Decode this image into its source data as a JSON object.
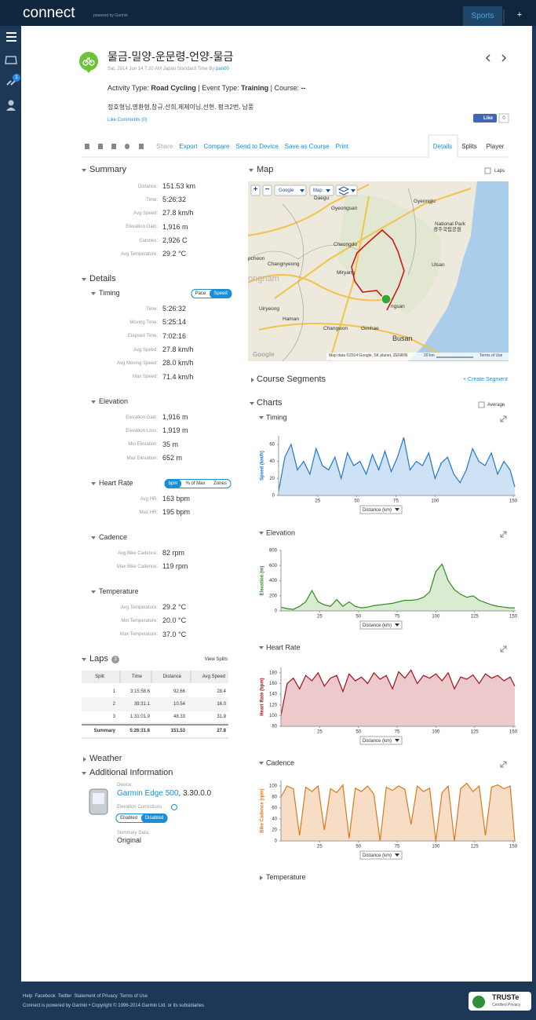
{
  "top_bar": {
    "logo": "connect",
    "powered": "powered by Garmin",
    "tab": "Sports",
    "plus": "+"
  },
  "sidebar": {
    "badge": "1"
  },
  "header": {
    "title": "물금-밀양-운문령-언양-물금",
    "subtitle": "Sat, 2014 Jun 14 7:20 AM Japan Standard Time By ",
    "author": "pan00",
    "activity_label": "Activity Type: ",
    "activity": "Road Cycling",
    "event_label": " | Event Type: ",
    "event": "Training",
    "course_label": " | Course: ",
    "course": "--",
    "description": "정호형님,명환형,창규,선희,제제이님,선현. 펑크2번. 남풍",
    "like_comments": "Like Comments (0)",
    "like": "Like",
    "like_count": "0"
  },
  "toolbar": {
    "actions": [
      "Share",
      "Export",
      "Compare",
      "Send to Device",
      "Save as Course",
      "Print"
    ],
    "tabs": [
      "Details",
      "Splits",
      "Player"
    ]
  },
  "summary": {
    "title": "Summary",
    "rows": [
      {
        "label": "Distance:",
        "value": "151.53 km"
      },
      {
        "label": "Time:",
        "value": "5:26:32"
      },
      {
        "label": "Avg Speed:",
        "value": "27.8 km/h"
      },
      {
        "label": "Elevation Gain:",
        "value": "1,916 m"
      },
      {
        "label": "Calories:",
        "value": "2,926 C"
      },
      {
        "label": "Avg Temperature:",
        "value": "29.2 °C"
      }
    ]
  },
  "details": {
    "title": "Details",
    "groups": [
      {
        "title": "Timing",
        "toggle": [
          "Pace",
          "Speed"
        ],
        "rows": [
          {
            "label": "Time:",
            "value": "5:26:32"
          },
          {
            "label": "Moving Time:",
            "value": "5:25:14"
          },
          {
            "label": "Elapsed Time:",
            "value": "7:02:16"
          },
          {
            "label": "Avg Speed:",
            "value": "27.8 km/h"
          },
          {
            "label": "Avg Moving Speed:",
            "value": "28.0 km/h"
          },
          {
            "label": "Max Speed:",
            "value": "71.4 km/h"
          }
        ]
      },
      {
        "title": "Elevation",
        "rows": [
          {
            "label": "Elevation Gain:",
            "value": "1,916 m"
          },
          {
            "label": "Elevation Loss:",
            "value": "1,919 m"
          },
          {
            "label": "Min Elevation:",
            "value": "35 m"
          },
          {
            "label": "Max Elevation:",
            "value": "652 m"
          }
        ]
      },
      {
        "title": "Heart Rate",
        "toggle": [
          "bpm",
          "% of Max",
          "Zones"
        ],
        "rows": [
          {
            "label": "Avg HR:",
            "value": "163 bpm"
          },
          {
            "label": "Max HR:",
            "value": "195 bpm"
          }
        ]
      },
      {
        "title": "Cadence",
        "rows": [
          {
            "label": "Avg Bike Cadence:",
            "value": "82 rpm"
          },
          {
            "label": "Max Bike Cadence:",
            "value": "119 rpm"
          }
        ]
      },
      {
        "title": "Temperature",
        "rows": [
          {
            "label": "Avg Temperature:",
            "value": "29.2 °C"
          },
          {
            "label": "Min Temperature:",
            "value": "20.0 °C"
          },
          {
            "label": "Max Temperature:",
            "value": "37.0 °C"
          }
        ]
      }
    ]
  },
  "laps": {
    "title": "Laps",
    "count": "3",
    "view": "View Splits",
    "columns": [
      "Split",
      "Time",
      "Distance",
      "Avg Speed"
    ],
    "rows": [
      [
        "1",
        "3:15:58.6",
        "92.66",
        "28.4"
      ],
      [
        "2",
        "39:31.1",
        "10.54",
        "16.0"
      ],
      [
        "3",
        "1:31:01.9",
        "48.33",
        "31.9"
      ],
      [
        "Summary",
        "5:26:31.6",
        "151.53",
        "27.8"
      ]
    ]
  },
  "weather": "Weather",
  "additional": {
    "title": "Additional Information",
    "device_label": "Device:",
    "device": "Garmin Edge 500",
    "version": ", 3.30.0.0",
    "corrections_label": "Elevation Corrections",
    "toggle": [
      "Enabled",
      "Disabled"
    ],
    "summary_label": "Summary Data:",
    "summary": "Original"
  },
  "map": {
    "title": "Map",
    "laps": "Laps",
    "zoom": [
      "+",
      "−"
    ],
    "buttons": [
      "Google",
      "Map"
    ],
    "labels": [
      "Daegu",
      "Gyeongsan",
      "Gyeongju",
      "National Park",
      "경주국립공원",
      "Cheongdo",
      "pcheon",
      "Changnyeong",
      "Miryang",
      "Ulsan",
      "ongnam",
      "Uiryeong",
      "ngsan",
      "Haman",
      "Changwon",
      "Gimhae",
      "Busan"
    ],
    "google": "Google",
    "attribution": "Map data ©2014 Google, SK planet, ZENRIN",
    "scale": "20 km",
    "terms": "Terms of Use"
  },
  "course_segments": {
    "title": "Course Segments",
    "create": "+ Create Segment"
  },
  "charts_section": {
    "title": "Charts",
    "average": "Average",
    "temperature": "Temperature"
  },
  "chart_data": [
    {
      "type": "area",
      "title": "Timing",
      "y_label": "Speed (km/h)",
      "x_label": "Distance (km)",
      "color": "#1f78d1",
      "fill": "#cfe2f5",
      "x": [
        0,
        4,
        8,
        12,
        16,
        20,
        24,
        28,
        32,
        36,
        40,
        44,
        48,
        52,
        56,
        60,
        64,
        68,
        72,
        76,
        80,
        84,
        88,
        92,
        96,
        100,
        104,
        108,
        112,
        116,
        120,
        124,
        128,
        132,
        136,
        140,
        144,
        148,
        151
      ],
      "values": [
        5,
        45,
        60,
        30,
        40,
        25,
        55,
        35,
        30,
        45,
        20,
        50,
        35,
        40,
        25,
        48,
        30,
        52,
        28,
        45,
        68,
        30,
        40,
        35,
        50,
        20,
        38,
        45,
        25,
        15,
        30,
        55,
        40,
        35,
        50,
        25,
        40,
        30,
        10
      ],
      "xlim": [
        0,
        151.5
      ],
      "ylim": [
        0,
        70
      ],
      "xticks": [
        25,
        50,
        75,
        100,
        150
      ],
      "yticks": [
        0,
        20,
        40,
        60
      ]
    },
    {
      "type": "area",
      "title": "Elevation",
      "y_label": "Elevation (m)",
      "x_label": "Distance (km)",
      "color": "#2e8b1e",
      "fill": "#d9ecd1",
      "x": [
        0,
        4,
        8,
        12,
        16,
        20,
        24,
        28,
        32,
        36,
        40,
        44,
        48,
        52,
        56,
        60,
        64,
        68,
        72,
        76,
        80,
        84,
        88,
        92,
        96,
        100,
        104,
        108,
        112,
        116,
        120,
        124,
        128,
        132,
        136,
        140,
        144,
        148,
        151
      ],
      "values": [
        50,
        30,
        20,
        60,
        120,
        270,
        120,
        80,
        60,
        150,
        60,
        120,
        60,
        40,
        50,
        70,
        80,
        90,
        100,
        120,
        140,
        140,
        150,
        180,
        250,
        520,
        620,
        400,
        280,
        220,
        180,
        200,
        140,
        110,
        80,
        60,
        50,
        40,
        40
      ],
      "xlim": [
        0,
        151.5
      ],
      "ylim": [
        0,
        800
      ],
      "xticks": [
        25,
        50,
        75,
        100,
        125,
        150
      ],
      "yticks": [
        0,
        200,
        400,
        600,
        800
      ]
    },
    {
      "type": "area",
      "title": "Heart Rate",
      "y_label": "Heart Rate (bpm)",
      "x_label": "Distance (km)",
      "color": "#a3101e",
      "fill": "#ecc9ca",
      "x": [
        0,
        4,
        8,
        12,
        16,
        20,
        24,
        28,
        32,
        36,
        40,
        44,
        48,
        52,
        56,
        60,
        64,
        68,
        72,
        76,
        80,
        84,
        88,
        92,
        96,
        100,
        104,
        108,
        112,
        116,
        120,
        124,
        128,
        132,
        136,
        140,
        144,
        148,
        151
      ],
      "values": [
        100,
        160,
        170,
        150,
        175,
        165,
        180,
        155,
        170,
        175,
        145,
        178,
        165,
        172,
        160,
        180,
        168,
        175,
        150,
        182,
        170,
        185,
        160,
        175,
        170,
        178,
        165,
        180,
        150,
        172,
        168,
        176,
        160,
        178,
        170,
        175,
        165,
        172,
        155
      ],
      "xlim": [
        0,
        151.5
      ],
      "ylim": [
        80,
        190
      ],
      "xticks": [
        25,
        50,
        75,
        100,
        125,
        150
      ],
      "yticks": [
        80,
        100,
        120,
        140,
        160,
        180
      ]
    },
    {
      "type": "area",
      "title": "Cadence",
      "y_label": "Bike Cadence (rpm)",
      "x_label": "Distance (km)",
      "color": "#d9791c",
      "fill": "#f8ddc6",
      "x": [
        0,
        4,
        8,
        12,
        16,
        20,
        24,
        28,
        32,
        36,
        40,
        44,
        48,
        52,
        56,
        60,
        64,
        68,
        72,
        76,
        80,
        84,
        88,
        92,
        96,
        100,
        104,
        108,
        112,
        116,
        120,
        124,
        128,
        132,
        136,
        140,
        144,
        148,
        151
      ],
      "values": [
        80,
        100,
        95,
        10,
        98,
        90,
        100,
        20,
        95,
        88,
        102,
        5,
        96,
        90,
        100,
        85,
        0,
        98,
        92,
        100,
        94,
        30,
        100,
        90,
        96,
        0,
        88,
        100,
        0,
        95,
        105,
        90,
        100,
        10,
        98,
        102,
        95,
        100,
        0
      ],
      "xlim": [
        0,
        151.5
      ],
      "ylim": [
        0,
        110
      ],
      "xticks": [
        25,
        50,
        75,
        100,
        125,
        150
      ],
      "yticks": [
        0,
        20,
        40,
        60,
        80,
        100
      ]
    }
  ],
  "footer": {
    "links": [
      "Help",
      "Facebook",
      "Twitter",
      "Statement of Privacy",
      "Terms of Use"
    ],
    "copyright": "Connect is powered by Garmin • Copyright © 1996-2014 Garmin Ltd. or its subsidiaries",
    "truste": "TRUSTe",
    "truste_sub": "Certified Privacy"
  }
}
